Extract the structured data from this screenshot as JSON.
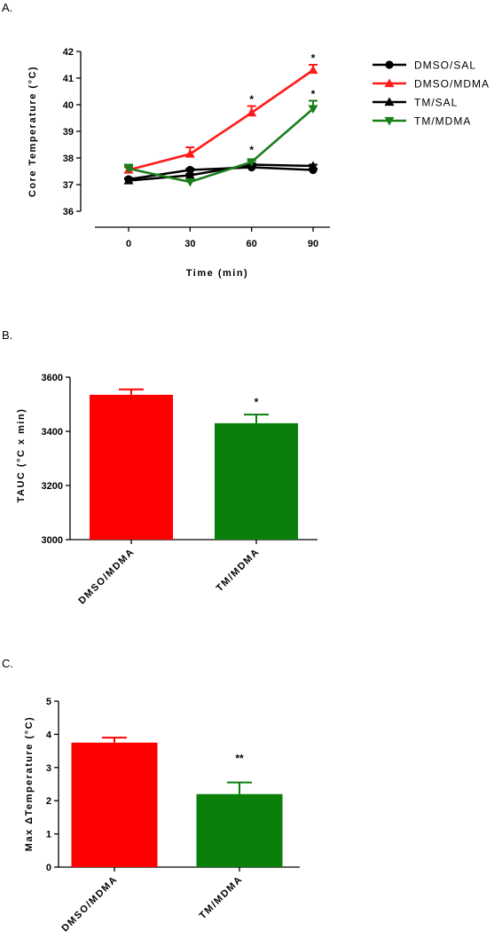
{
  "panels": {
    "a": "A.",
    "b": "B.",
    "c": "C."
  },
  "chart_data": [
    {
      "type": "line",
      "panel": "A.",
      "xlabel": "Time (min)",
      "ylabel": "Core Temperature (°C)",
      "x": [
        0,
        30,
        60,
        90
      ],
      "ylim": [
        36,
        42
      ],
      "yticks": [
        36,
        37,
        38,
        39,
        40,
        41,
        42
      ],
      "legend_position": "right",
      "series": [
        {
          "name": "DMSO/SAL",
          "values": [
            37.2,
            37.55,
            37.65,
            37.55
          ],
          "errors": [
            0.05,
            0.05,
            0.05,
            0.05
          ],
          "color": "#000000",
          "marker": "circle"
        },
        {
          "name": "DMSO/MDMA",
          "values": [
            37.55,
            38.15,
            39.7,
            41.3
          ],
          "errors": [
            0.1,
            0.25,
            0.25,
            0.2
          ],
          "color": "#ff1a1a",
          "marker": "triangle-up"
        },
        {
          "name": "TM/SAL",
          "values": [
            37.15,
            37.35,
            37.75,
            37.7
          ],
          "errors": [
            0.05,
            0.05,
            0.05,
            0.05
          ],
          "color": "#000000",
          "marker": "triangle-up"
        },
        {
          "name": "TM/MDMA",
          "values": [
            37.6,
            37.1,
            37.85,
            39.85
          ],
          "errors": [
            0.15,
            0.05,
            0.05,
            0.3
          ],
          "color": "#1a7f1a",
          "marker": "triangle-down"
        }
      ],
      "annotations": [
        {
          "x": 60,
          "y": 40.0,
          "text": "*"
        },
        {
          "x": 90,
          "y": 41.55,
          "text": "*"
        },
        {
          "x": 60,
          "y": 38.1,
          "text": "*"
        },
        {
          "x": 90,
          "y": 40.2,
          "text": "*"
        }
      ]
    },
    {
      "type": "bar",
      "panel": "B.",
      "categories": [
        "DMSO/MDMA",
        "TM/MDMA"
      ],
      "values": [
        3535,
        3430
      ],
      "errors": [
        20,
        32
      ],
      "colors": [
        "#ff0000",
        "#0a7f0a"
      ],
      "ylabel": "TAUC (°C x min)",
      "ylim": [
        3000,
        3600
      ],
      "yticks": [
        3000,
        3200,
        3400,
        3600
      ],
      "annotations": [
        {
          "category": "TM/MDMA",
          "text": "*"
        }
      ]
    },
    {
      "type": "bar",
      "panel": "C.",
      "categories": [
        "DMSO/MDMA",
        "TM/MDMA"
      ],
      "values": [
        3.75,
        2.2
      ],
      "errors": [
        0.15,
        0.35
      ],
      "colors": [
        "#ff0000",
        "#0a7f0a"
      ],
      "ylabel": "Max ΔTemperature (°C)",
      "ylim": [
        0,
        5
      ],
      "yticks": [
        0,
        1,
        2,
        3,
        4,
        5
      ],
      "annotations": [
        {
          "category": "TM/MDMA",
          "text": "**"
        }
      ]
    }
  ]
}
